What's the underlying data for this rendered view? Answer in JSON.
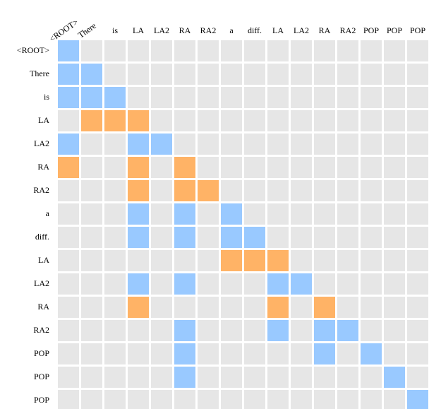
{
  "columns": [
    "<ROOT>",
    "There",
    "is",
    "LA",
    "LA2",
    "RA",
    "RA2",
    "a",
    "diff.",
    "LA",
    "LA2",
    "RA",
    "RA2",
    "POP",
    "POP",
    "POP"
  ],
  "rows": [
    "<ROOT>",
    "There",
    "is",
    "LA",
    "LA2",
    "RA",
    "RA2",
    "a",
    "diff.",
    "LA",
    "LA2",
    "RA",
    "RA2",
    "POP",
    "POP",
    "POP"
  ],
  "colors": [
    "#e6e6e6",
    "#99c9ff",
    "#ffb366"
  ],
  "cells": [
    [
      1,
      0,
      0,
      0,
      0,
      0,
      0,
      0,
      0,
      0,
      0,
      0,
      0,
      0,
      0,
      0
    ],
    [
      1,
      1,
      0,
      0,
      0,
      0,
      0,
      0,
      0,
      0,
      0,
      0,
      0,
      0,
      0,
      0
    ],
    [
      1,
      1,
      1,
      0,
      0,
      0,
      0,
      0,
      0,
      0,
      0,
      0,
      0,
      0,
      0,
      0
    ],
    [
      0,
      2,
      2,
      2,
      0,
      0,
      0,
      0,
      0,
      0,
      0,
      0,
      0,
      0,
      0,
      0
    ],
    [
      1,
      0,
      0,
      1,
      1,
      0,
      0,
      0,
      0,
      0,
      0,
      0,
      0,
      0,
      0,
      0
    ],
    [
      2,
      0,
      0,
      2,
      0,
      2,
      0,
      0,
      0,
      0,
      0,
      0,
      0,
      0,
      0,
      0
    ],
    [
      0,
      0,
      0,
      2,
      0,
      2,
      2,
      0,
      0,
      0,
      0,
      0,
      0,
      0,
      0,
      0
    ],
    [
      0,
      0,
      0,
      1,
      0,
      1,
      0,
      1,
      0,
      0,
      0,
      0,
      0,
      0,
      0,
      0
    ],
    [
      0,
      0,
      0,
      1,
      0,
      1,
      0,
      1,
      1,
      0,
      0,
      0,
      0,
      0,
      0,
      0
    ],
    [
      0,
      0,
      0,
      0,
      0,
      0,
      0,
      2,
      2,
      2,
      0,
      0,
      0,
      0,
      0,
      0
    ],
    [
      0,
      0,
      0,
      1,
      0,
      1,
      0,
      0,
      0,
      1,
      1,
      0,
      0,
      0,
      0,
      0
    ],
    [
      0,
      0,
      0,
      2,
      0,
      0,
      0,
      0,
      0,
      2,
      0,
      2,
      0,
      0,
      0,
      0
    ],
    [
      0,
      0,
      0,
      0,
      0,
      1,
      0,
      0,
      0,
      1,
      0,
      1,
      1,
      0,
      0,
      0
    ],
    [
      0,
      0,
      0,
      0,
      0,
      1,
      0,
      0,
      0,
      0,
      0,
      1,
      0,
      1,
      0,
      0
    ],
    [
      0,
      0,
      0,
      0,
      0,
      1,
      0,
      0,
      0,
      0,
      0,
      0,
      0,
      0,
      1,
      0
    ],
    [
      0,
      0,
      0,
      0,
      0,
      0,
      0,
      0,
      0,
      0,
      0,
      0,
      0,
      0,
      0,
      1
    ]
  ]
}
